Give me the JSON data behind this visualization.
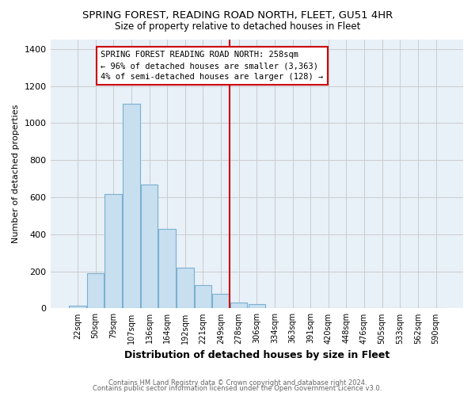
{
  "title": "SPRING FOREST, READING ROAD NORTH, FLEET, GU51 4HR",
  "subtitle": "Size of property relative to detached houses in Fleet",
  "xlabel": "Distribution of detached houses by size in Fleet",
  "ylabel": "Number of detached properties",
  "bar_labels": [
    "22sqm",
    "50sqm",
    "79sqm",
    "107sqm",
    "136sqm",
    "164sqm",
    "192sqm",
    "221sqm",
    "249sqm",
    "278sqm",
    "306sqm",
    "334sqm",
    "363sqm",
    "391sqm",
    "420sqm",
    "448sqm",
    "476sqm",
    "505sqm",
    "533sqm",
    "562sqm",
    "590sqm"
  ],
  "bar_heights": [
    15,
    190,
    615,
    1105,
    670,
    430,
    220,
    125,
    80,
    30,
    25,
    0,
    0,
    0,
    0,
    0,
    0,
    0,
    0,
    0,
    0
  ],
  "bar_color": "#c8dff0",
  "bar_edge_color": "#7ab0d0",
  "vline_color": "#cc0000",
  "annotation_title": "SPRING FOREST READING ROAD NORTH: 258sqm",
  "annotation_line1": "← 96% of detached houses are smaller (3,363)",
  "annotation_line2": "4% of semi-detached houses are larger (128) →",
  "ylim": [
    0,
    1450
  ],
  "yticks": [
    0,
    200,
    400,
    600,
    800,
    1000,
    1200,
    1400
  ],
  "footnote1": "Contains HM Land Registry data © Crown copyright and database right 2024.",
  "footnote2": "Contains public sector information licensed under the Open Government Licence v3.0.",
  "plot_bg_color": "#e8f0f8",
  "fig_bg_color": "#ffffff",
  "grid_color": "#cccccc",
  "vline_bar_index": 8.5
}
